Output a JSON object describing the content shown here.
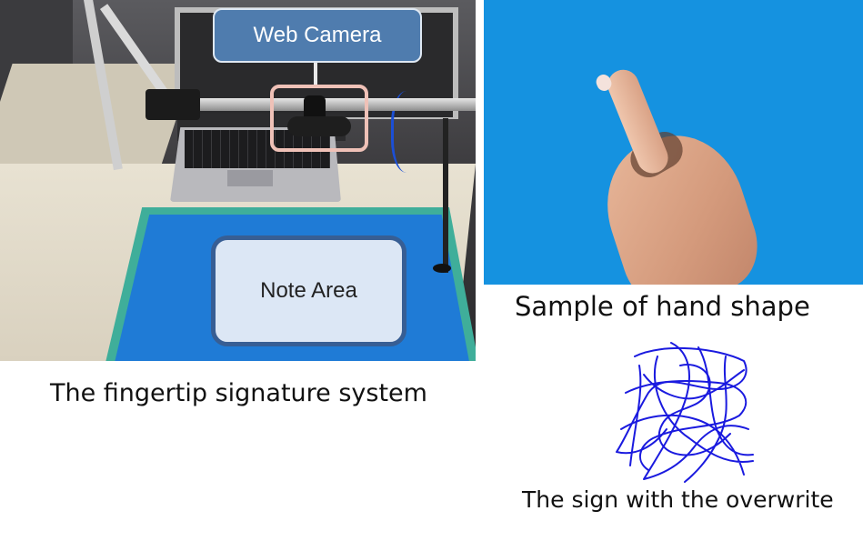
{
  "left_photo": {
    "callouts": {
      "web_camera": "Web Camera",
      "note_area": "Note Area"
    },
    "caption": "The fingertip signature system"
  },
  "right_photo": {
    "caption": "Sample of hand shape"
  },
  "signature_figure": {
    "caption": "The sign with the overwrite",
    "stroke_color": "#1a1adf"
  },
  "colors": {
    "mat_blue": "#1f7bd6",
    "mat_border_green": "#3fae9a",
    "hand_background_blue": "#1592e0",
    "callout_fill": "#4f7cae",
    "note_area_fill": "#dce7f5",
    "highlight_pink": "#efc1b7"
  }
}
